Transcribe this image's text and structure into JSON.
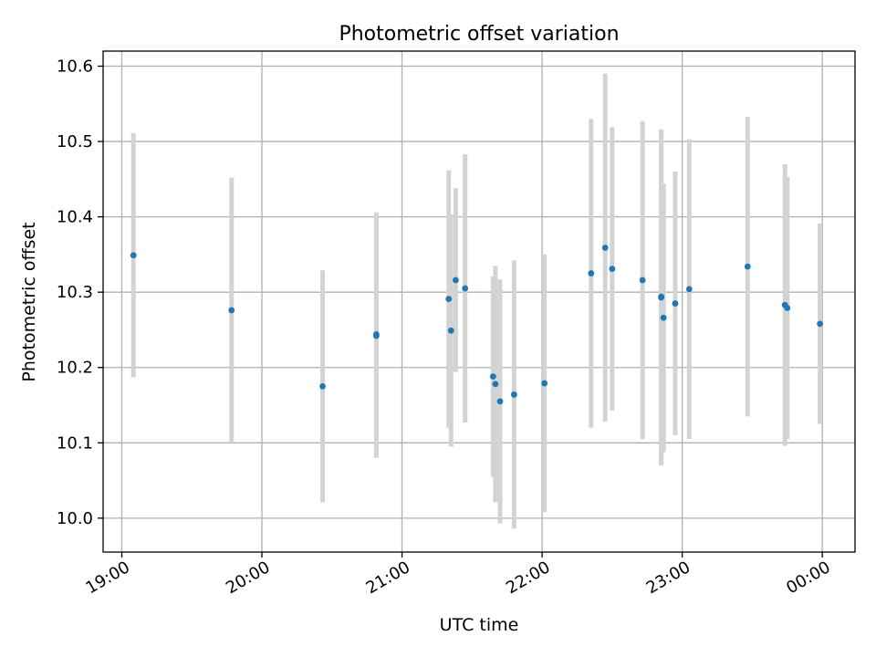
{
  "chart_data": {
    "type": "scatter",
    "title": "Photometric offset variation",
    "xlabel": "UTC time",
    "ylabel": "Photometric offset",
    "x_ticks": [
      "19:00",
      "20:00",
      "21:00",
      "22:00",
      "23:00",
      "00:00"
    ],
    "y_ticks": [
      "10.0",
      "10.1",
      "10.2",
      "10.3",
      "10.4",
      "10.5",
      "10.6"
    ],
    "xlim": [
      "18:52",
      "00:14"
    ],
    "ylim": [
      9.955,
      10.62
    ],
    "grid": true,
    "errorbar_color": "#d3d3d3",
    "point_color": "#1f77b4",
    "points": [
      {
        "x": "19:05",
        "y": 10.349,
        "err": 0.162
      },
      {
        "x": "19:47",
        "y": 10.276,
        "err": 0.176
      },
      {
        "x": "20:26",
        "y": 10.175,
        "err": 0.154
      },
      {
        "x": "20:49",
        "y": 10.244,
        "err": 0.162
      },
      {
        "x": "20:49",
        "y": 10.242,
        "err": 0.162
      },
      {
        "x": "21:20",
        "y": 10.291,
        "err": 0.171
      },
      {
        "x": "21:21",
        "y": 10.249,
        "err": 0.154
      },
      {
        "x": "21:23",
        "y": 10.316,
        "err": 0.122
      },
      {
        "x": "21:27",
        "y": 10.305,
        "err": 0.178
      },
      {
        "x": "21:39",
        "y": 10.188,
        "err": 0.133
      },
      {
        "x": "21:40",
        "y": 10.178,
        "err": 0.157
      },
      {
        "x": "21:42",
        "y": 10.155,
        "err": 0.162
      },
      {
        "x": "21:48",
        "y": 10.164,
        "err": 0.178
      },
      {
        "x": "22:01",
        "y": 10.179,
        "err": 0.171
      },
      {
        "x": "22:21",
        "y": 10.325,
        "err": 0.205
      },
      {
        "x": "22:27",
        "y": 10.359,
        "err": 0.231
      },
      {
        "x": "22:30",
        "y": 10.331,
        "err": 0.188
      },
      {
        "x": "22:43",
        "y": 10.316,
        "err": 0.211
      },
      {
        "x": "22:51",
        "y": 10.294,
        "err": 0.222
      },
      {
        "x": "22:51",
        "y": 10.293,
        "err": 0.223
      },
      {
        "x": "22:52",
        "y": 10.266,
        "err": 0.178
      },
      {
        "x": "22:57",
        "y": 10.285,
        "err": 0.175
      },
      {
        "x": "23:03",
        "y": 10.304,
        "err": 0.199
      },
      {
        "x": "23:28",
        "y": 10.334,
        "err": 0.199
      },
      {
        "x": "23:44",
        "y": 10.283,
        "err": 0.187
      },
      {
        "x": "23:45",
        "y": 10.279,
        "err": 0.174
      },
      {
        "x": "23:59",
        "y": 10.258,
        "err": 0.133
      }
    ]
  }
}
